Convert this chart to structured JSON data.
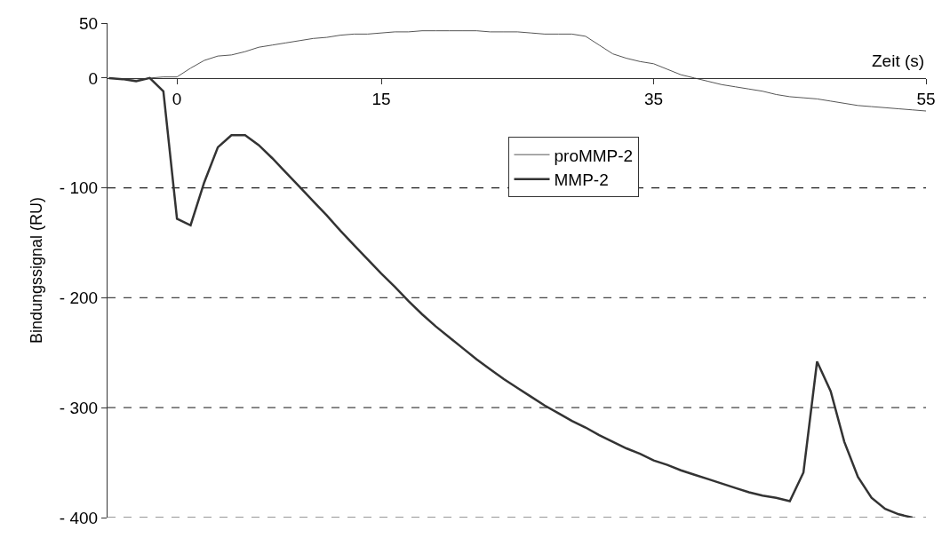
{
  "chart_data": {
    "type": "line",
    "xlabel": "Zeit (s)",
    "ylabel": "Bindungssignal (RU)",
    "x": [
      -5,
      -4,
      -3,
      -2,
      -1,
      0,
      1,
      2,
      3,
      4,
      5,
      6,
      7,
      8,
      9,
      10,
      11,
      12,
      13,
      14,
      15,
      16,
      17,
      18,
      19,
      20,
      21,
      22,
      23,
      24,
      25,
      26,
      27,
      28,
      29,
      30,
      31,
      32,
      33,
      34,
      35,
      36,
      37,
      38,
      39,
      40,
      41,
      42,
      43,
      44,
      45,
      46,
      47,
      48,
      49,
      50,
      51,
      52,
      53,
      54,
      55
    ],
    "series": [
      {
        "name": "proMMP-2",
        "color": "#555555",
        "values": [
          0,
          -1,
          -2,
          0,
          1,
          1,
          9,
          16,
          20,
          21,
          24,
          28,
          30,
          32,
          34,
          36,
          37,
          39,
          40,
          40,
          41,
          42,
          42,
          43,
          43,
          43,
          43,
          43,
          42,
          42,
          42,
          41,
          40,
          40,
          40,
          38,
          30,
          22,
          18,
          15,
          13,
          8,
          3,
          0,
          -3,
          -6,
          -8,
          -10,
          -12,
          -15,
          -17,
          -18,
          -19,
          -21,
          -23,
          -25,
          -26,
          -27,
          -28,
          -29,
          -30
        ]
      },
      {
        "name": "MMP-2",
        "color": "#333333",
        "values": [
          0,
          -1,
          -3,
          0,
          -12,
          -128,
          -134,
          -95,
          -63,
          -52,
          -52,
          -61,
          -73,
          -86,
          -99,
          -112,
          -125,
          -139,
          -152,
          -165,
          -178,
          -190,
          -203,
          -215,
          -226,
          -236,
          -246,
          -256,
          -265,
          -274,
          -282,
          -290,
          -298,
          -305,
          -312,
          -318,
          -325,
          -331,
          -337,
          -342,
          -348,
          -352,
          -357,
          -361,
          -365,
          -369,
          -373,
          -377,
          -380,
          -382,
          -385,
          -359,
          -258,
          -285,
          -331,
          -363,
          -382,
          -392,
          -397,
          -400,
          null
        ]
      }
    ],
    "xlim": [
      -5.1,
      55
    ],
    "xticks": [
      0,
      15,
      35,
      55
    ],
    "ylim": [
      -400,
      50
    ],
    "yticks": [
      50,
      0,
      {
        "value": -100,
        "label": "- 100"
      },
      {
        "value": -200,
        "label": "- 200"
      },
      {
        "value": -300,
        "label": "- 300"
      },
      {
        "value": -400,
        "label": "- 400"
      }
    ],
    "ref_lines": [
      {
        "axis": "y",
        "value": -100,
        "color": "#222222",
        "line_style": "dashed"
      },
      {
        "axis": "y",
        "value": -200,
        "color": "#444444",
        "line_style": "dashed"
      },
      {
        "axis": "y",
        "value": -300,
        "color": "#444444",
        "line_style": "dashed"
      },
      {
        "axis": "y",
        "value": -400,
        "color": "#777777",
        "line_style": "dashed"
      }
    ],
    "legend": "top",
    "grid": false,
    "marker": "none",
    "line_style": "solid"
  }
}
